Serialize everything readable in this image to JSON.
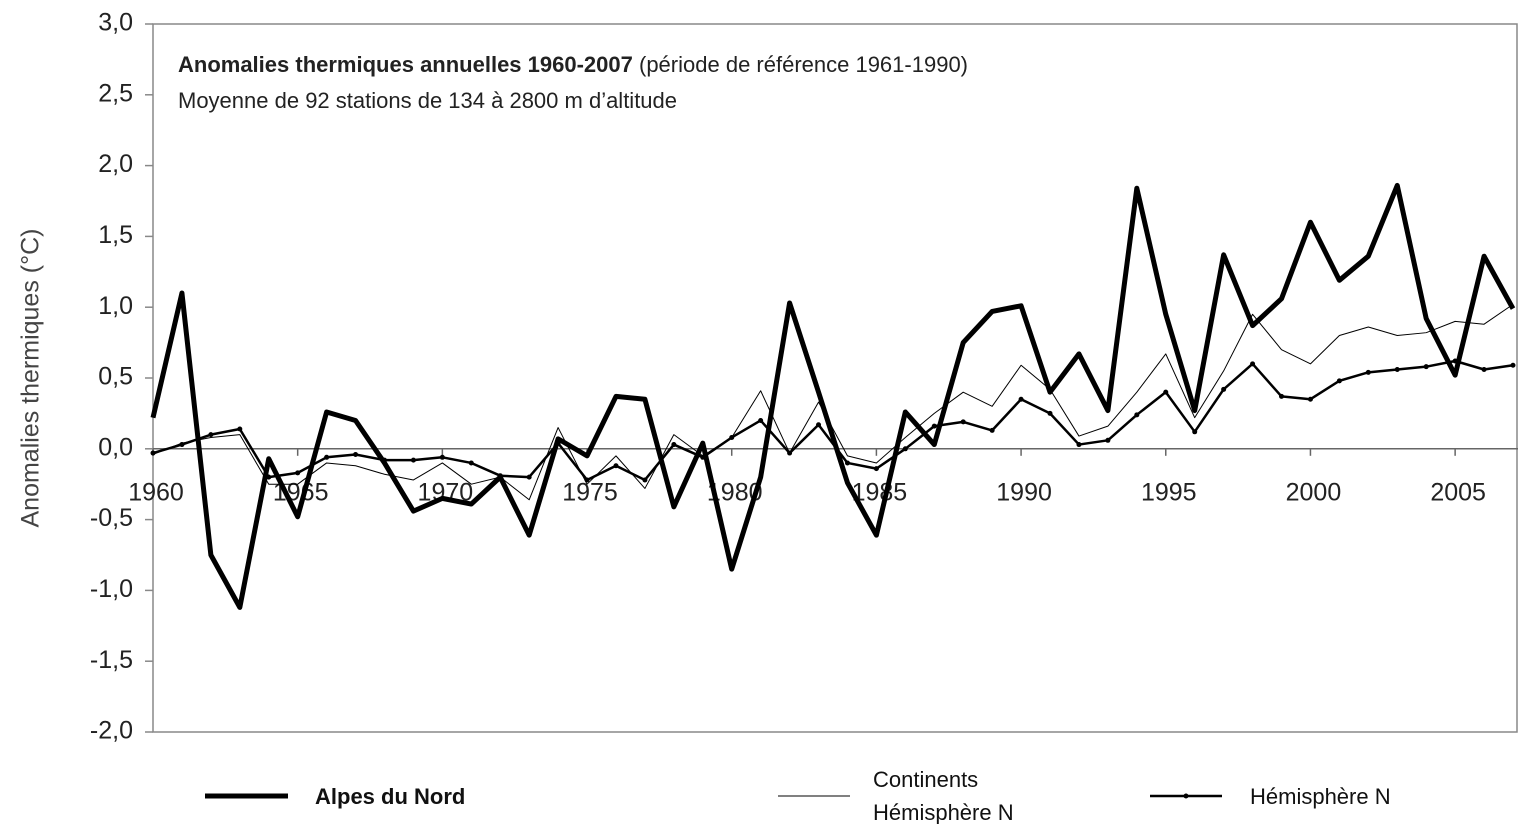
{
  "chart_data": {
    "type": "line",
    "title": "Anomalies thermiques annuelles 1960-2007",
    "title_note": "(période de référence 1961-1990)",
    "subtitle": "Moyenne de 92 stations de 134 à 2800 m d’altitude",
    "ylabel": "Anomalies thermiques (°C)",
    "x": [
      1960,
      1961,
      1962,
      1963,
      1964,
      1965,
      1966,
      1967,
      1968,
      1969,
      1970,
      1971,
      1972,
      1973,
      1974,
      1975,
      1976,
      1977,
      1978,
      1979,
      1980,
      1981,
      1982,
      1983,
      1984,
      1985,
      1986,
      1987,
      1988,
      1989,
      1990,
      1991,
      1992,
      1993,
      1994,
      1995,
      1996,
      1997,
      1998,
      1999,
      2000,
      2001,
      2002,
      2003,
      2004,
      2005,
      2006,
      2007
    ],
    "series": [
      {
        "name": "Alpes du Nord",
        "color": "#000000",
        "line_width": 5,
        "markers": false,
        "values": [
          0.22,
          1.1,
          -0.75,
          -1.12,
          -0.07,
          -0.48,
          0.26,
          0.2,
          -0.1,
          -0.44,
          -0.35,
          -0.39,
          -0.2,
          -0.61,
          0.07,
          -0.05,
          0.37,
          0.35,
          -0.41,
          0.04,
          -0.85,
          -0.2,
          1.03,
          0.4,
          -0.24,
          -0.61,
          0.26,
          0.03,
          0.75,
          0.97,
          1.01,
          0.4,
          0.67,
          0.27,
          1.84,
          0.95,
          0.27,
          1.37,
          0.87,
          1.06,
          1.6,
          1.19,
          1.36,
          1.86,
          0.92,
          0.52,
          1.36,
          0.99
        ]
      },
      {
        "name": "Continents\nHémisphère N",
        "color": "#000000",
        "line_width": 1,
        "markers": false,
        "values": [
          -0.04,
          0.04,
          0.08,
          0.1,
          -0.25,
          -0.25,
          -0.1,
          -0.12,
          -0.18,
          -0.22,
          -0.1,
          -0.25,
          -0.2,
          -0.36,
          0.15,
          -0.25,
          -0.05,
          -0.28,
          0.1,
          -0.05,
          0.08,
          0.41,
          -0.03,
          0.33,
          -0.05,
          -0.1,
          0.08,
          0.25,
          0.4,
          0.3,
          0.59,
          0.42,
          0.09,
          0.16,
          0.4,
          0.67,
          0.22,
          0.55,
          0.95,
          0.7,
          0.6,
          0.8,
          0.86,
          0.8,
          0.82,
          0.9,
          0.88,
          1.02
        ]
      },
      {
        "name": "Hémisphère N",
        "color": "#000000",
        "line_width": 2.5,
        "markers": true,
        "values": [
          -0.03,
          0.03,
          0.1,
          0.14,
          -0.2,
          -0.17,
          -0.06,
          -0.04,
          -0.08,
          -0.08,
          -0.06,
          -0.1,
          -0.19,
          -0.2,
          0.04,
          -0.22,
          -0.12,
          -0.22,
          0.03,
          -0.06,
          0.08,
          0.2,
          -0.03,
          0.17,
          -0.1,
          -0.14,
          0.0,
          0.16,
          0.19,
          0.13,
          0.35,
          0.25,
          0.03,
          0.06,
          0.24,
          0.4,
          0.12,
          0.42,
          0.6,
          0.37,
          0.35,
          0.48,
          0.54,
          0.56,
          0.58,
          0.62,
          0.56,
          0.59
        ]
      }
    ],
    "xlim": [
      1960,
      2007
    ],
    "xticks": [
      1960,
      1965,
      1970,
      1975,
      1980,
      1985,
      1990,
      1995,
      2000,
      2005
    ],
    "ylim": [
      -2,
      3
    ],
    "yticks": [
      {
        "value": -2,
        "label": "-2,0"
      },
      {
        "value": -1.5,
        "label": "-1,5"
      },
      {
        "value": -1,
        "label": "-1,0"
      },
      {
        "value": -0.5,
        "label": "-0,5"
      },
      {
        "value": 0,
        "label": "0,0"
      },
      {
        "value": 0.5,
        "label": "0,5"
      },
      {
        "value": 1,
        "label": "1,0"
      },
      {
        "value": 1.5,
        "label": "1,5"
      },
      {
        "value": 2,
        "label": "2,0"
      },
      {
        "value": 2.5,
        "label": "2,5"
      },
      {
        "value": 3,
        "label": "3,0"
      }
    ]
  }
}
